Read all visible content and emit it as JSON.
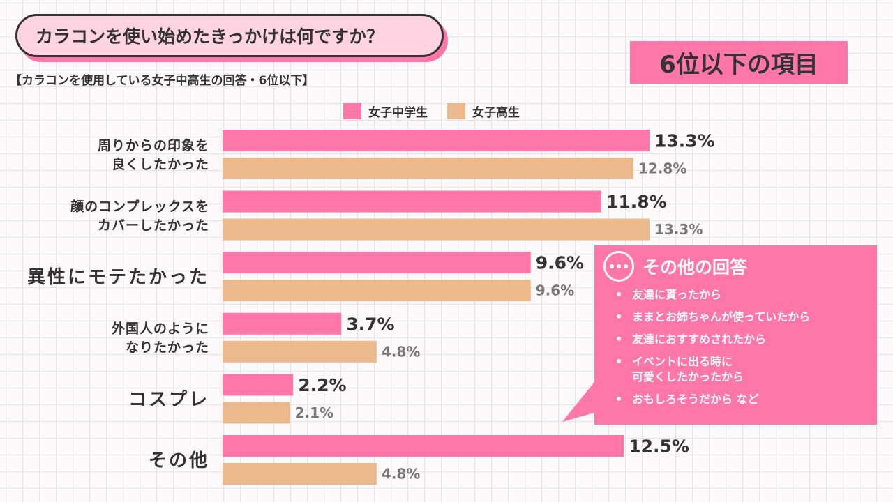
{
  "header": {
    "question": "カラコンを使い始めたきっかけは何ですか？",
    "subtitle": "【カラコンを使用している女子中高生の回答・6位以下】",
    "rank_badge": "6位以下の項目"
  },
  "colors": {
    "pink": "#ff77a8",
    "beige": "#ecb98d",
    "badge_fill": "#ffd3e1",
    "text_dark": "#333333",
    "text_gray": "#777777"
  },
  "chart_data": {
    "type": "bar",
    "orientation": "horizontal",
    "categories": [
      [
        "周りからの印象を",
        "良くしたかった"
      ],
      [
        "顔のコンプレックスを",
        "カバーしたかった"
      ],
      [
        "異性にモテたかった"
      ],
      [
        "外国人のように",
        "なりたかった"
      ],
      [
        "コスプレ"
      ],
      [
        "その他"
      ]
    ],
    "series": [
      {
        "name": "女子中学生",
        "color": "#ff77a8",
        "values": [
          13.3,
          11.8,
          9.6,
          3.7,
          2.2,
          12.5
        ],
        "labels": [
          "13.3%",
          "11.8%",
          "9.6%",
          "3.7%",
          "2.2%",
          "12.5%"
        ]
      },
      {
        "name": "女子高生",
        "color": "#ecb98d",
        "values": [
          12.8,
          13.3,
          9.6,
          4.8,
          2.1,
          4.8
        ],
        "labels": [
          "12.8%",
          "13.3%",
          "9.6%",
          "4.8%",
          "2.1%",
          "4.8%"
        ]
      }
    ],
    "xlim": [
      0,
      13.3
    ],
    "grid": false,
    "legend_position": "top-center"
  },
  "other_answers": {
    "title": "その他の回答",
    "items": [
      "友達に貰ったから",
      "ままとお姉ちゃんが使っていたから",
      "友達におすすめされたから",
      "イベントに出る時に\n可愛くしたかったから",
      "おもしろそうだから など"
    ]
  }
}
